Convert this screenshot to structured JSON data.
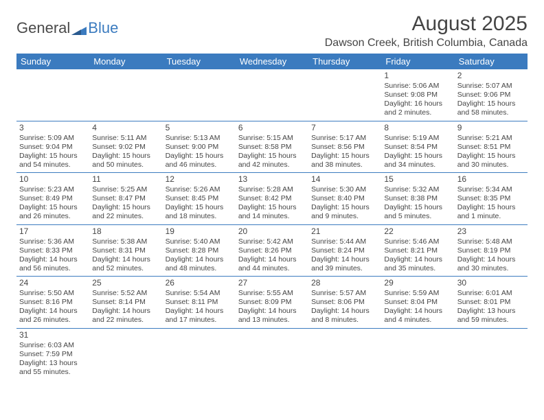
{
  "logo": {
    "text1": "General",
    "text2": "Blue"
  },
  "title": "August 2025",
  "location": "Dawson Creek, British Columbia, Canada",
  "colors": {
    "header_bg": "#3b7bbf",
    "header_text": "#ffffff",
    "border": "#3b7bbf",
    "text": "#444444",
    "background": "#ffffff"
  },
  "weekdays": [
    "Sunday",
    "Monday",
    "Tuesday",
    "Wednesday",
    "Thursday",
    "Friday",
    "Saturday"
  ],
  "weeks": [
    [
      null,
      null,
      null,
      null,
      null,
      {
        "n": "1",
        "sr": "Sunrise: 5:06 AM",
        "ss": "Sunset: 9:08 PM",
        "d1": "Daylight: 16 hours",
        "d2": "and 2 minutes."
      },
      {
        "n": "2",
        "sr": "Sunrise: 5:07 AM",
        "ss": "Sunset: 9:06 PM",
        "d1": "Daylight: 15 hours",
        "d2": "and 58 minutes."
      }
    ],
    [
      {
        "n": "3",
        "sr": "Sunrise: 5:09 AM",
        "ss": "Sunset: 9:04 PM",
        "d1": "Daylight: 15 hours",
        "d2": "and 54 minutes."
      },
      {
        "n": "4",
        "sr": "Sunrise: 5:11 AM",
        "ss": "Sunset: 9:02 PM",
        "d1": "Daylight: 15 hours",
        "d2": "and 50 minutes."
      },
      {
        "n": "5",
        "sr": "Sunrise: 5:13 AM",
        "ss": "Sunset: 9:00 PM",
        "d1": "Daylight: 15 hours",
        "d2": "and 46 minutes."
      },
      {
        "n": "6",
        "sr": "Sunrise: 5:15 AM",
        "ss": "Sunset: 8:58 PM",
        "d1": "Daylight: 15 hours",
        "d2": "and 42 minutes."
      },
      {
        "n": "7",
        "sr": "Sunrise: 5:17 AM",
        "ss": "Sunset: 8:56 PM",
        "d1": "Daylight: 15 hours",
        "d2": "and 38 minutes."
      },
      {
        "n": "8",
        "sr": "Sunrise: 5:19 AM",
        "ss": "Sunset: 8:54 PM",
        "d1": "Daylight: 15 hours",
        "d2": "and 34 minutes."
      },
      {
        "n": "9",
        "sr": "Sunrise: 5:21 AM",
        "ss": "Sunset: 8:51 PM",
        "d1": "Daylight: 15 hours",
        "d2": "and 30 minutes."
      }
    ],
    [
      {
        "n": "10",
        "sr": "Sunrise: 5:23 AM",
        "ss": "Sunset: 8:49 PM",
        "d1": "Daylight: 15 hours",
        "d2": "and 26 minutes."
      },
      {
        "n": "11",
        "sr": "Sunrise: 5:25 AM",
        "ss": "Sunset: 8:47 PM",
        "d1": "Daylight: 15 hours",
        "d2": "and 22 minutes."
      },
      {
        "n": "12",
        "sr": "Sunrise: 5:26 AM",
        "ss": "Sunset: 8:45 PM",
        "d1": "Daylight: 15 hours",
        "d2": "and 18 minutes."
      },
      {
        "n": "13",
        "sr": "Sunrise: 5:28 AM",
        "ss": "Sunset: 8:42 PM",
        "d1": "Daylight: 15 hours",
        "d2": "and 14 minutes."
      },
      {
        "n": "14",
        "sr": "Sunrise: 5:30 AM",
        "ss": "Sunset: 8:40 PM",
        "d1": "Daylight: 15 hours",
        "d2": "and 9 minutes."
      },
      {
        "n": "15",
        "sr": "Sunrise: 5:32 AM",
        "ss": "Sunset: 8:38 PM",
        "d1": "Daylight: 15 hours",
        "d2": "and 5 minutes."
      },
      {
        "n": "16",
        "sr": "Sunrise: 5:34 AM",
        "ss": "Sunset: 8:35 PM",
        "d1": "Daylight: 15 hours",
        "d2": "and 1 minute."
      }
    ],
    [
      {
        "n": "17",
        "sr": "Sunrise: 5:36 AM",
        "ss": "Sunset: 8:33 PM",
        "d1": "Daylight: 14 hours",
        "d2": "and 56 minutes."
      },
      {
        "n": "18",
        "sr": "Sunrise: 5:38 AM",
        "ss": "Sunset: 8:31 PM",
        "d1": "Daylight: 14 hours",
        "d2": "and 52 minutes."
      },
      {
        "n": "19",
        "sr": "Sunrise: 5:40 AM",
        "ss": "Sunset: 8:28 PM",
        "d1": "Daylight: 14 hours",
        "d2": "and 48 minutes."
      },
      {
        "n": "20",
        "sr": "Sunrise: 5:42 AM",
        "ss": "Sunset: 8:26 PM",
        "d1": "Daylight: 14 hours",
        "d2": "and 44 minutes."
      },
      {
        "n": "21",
        "sr": "Sunrise: 5:44 AM",
        "ss": "Sunset: 8:24 PM",
        "d1": "Daylight: 14 hours",
        "d2": "and 39 minutes."
      },
      {
        "n": "22",
        "sr": "Sunrise: 5:46 AM",
        "ss": "Sunset: 8:21 PM",
        "d1": "Daylight: 14 hours",
        "d2": "and 35 minutes."
      },
      {
        "n": "23",
        "sr": "Sunrise: 5:48 AM",
        "ss": "Sunset: 8:19 PM",
        "d1": "Daylight: 14 hours",
        "d2": "and 30 minutes."
      }
    ],
    [
      {
        "n": "24",
        "sr": "Sunrise: 5:50 AM",
        "ss": "Sunset: 8:16 PM",
        "d1": "Daylight: 14 hours",
        "d2": "and 26 minutes."
      },
      {
        "n": "25",
        "sr": "Sunrise: 5:52 AM",
        "ss": "Sunset: 8:14 PM",
        "d1": "Daylight: 14 hours",
        "d2": "and 22 minutes."
      },
      {
        "n": "26",
        "sr": "Sunrise: 5:54 AM",
        "ss": "Sunset: 8:11 PM",
        "d1": "Daylight: 14 hours",
        "d2": "and 17 minutes."
      },
      {
        "n": "27",
        "sr": "Sunrise: 5:55 AM",
        "ss": "Sunset: 8:09 PM",
        "d1": "Daylight: 14 hours",
        "d2": "and 13 minutes."
      },
      {
        "n": "28",
        "sr": "Sunrise: 5:57 AM",
        "ss": "Sunset: 8:06 PM",
        "d1": "Daylight: 14 hours",
        "d2": "and 8 minutes."
      },
      {
        "n": "29",
        "sr": "Sunrise: 5:59 AM",
        "ss": "Sunset: 8:04 PM",
        "d1": "Daylight: 14 hours",
        "d2": "and 4 minutes."
      },
      {
        "n": "30",
        "sr": "Sunrise: 6:01 AM",
        "ss": "Sunset: 8:01 PM",
        "d1": "Daylight: 13 hours",
        "d2": "and 59 minutes."
      }
    ],
    [
      {
        "n": "31",
        "sr": "Sunrise: 6:03 AM",
        "ss": "Sunset: 7:59 PM",
        "d1": "Daylight: 13 hours",
        "d2": "and 55 minutes."
      },
      null,
      null,
      null,
      null,
      null,
      null
    ]
  ]
}
